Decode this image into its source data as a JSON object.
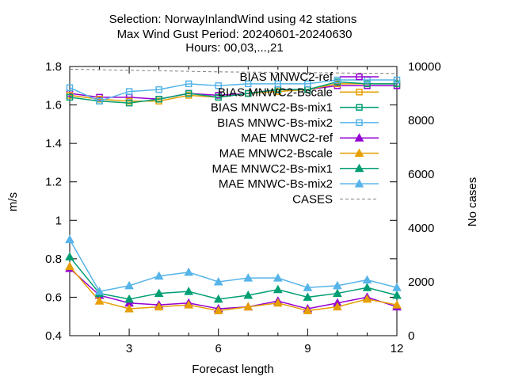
{
  "chart_data": {
    "type": "line",
    "title_lines": [
      "Selection: NorwayInlandWind using    42 stations",
      "Max Wind Gust   Period: 20240601-20240630",
      "Hours: 00,03,...,21"
    ],
    "xlabel": "Forecast length",
    "ylabel": "m/s",
    "y2label": "No cases",
    "x": [
      1,
      2,
      3,
      4,
      5,
      6,
      7,
      8,
      9,
      10,
      11,
      12
    ],
    "xlim": [
      1,
      12
    ],
    "ylim": [
      0.4,
      1.8
    ],
    "y2lim": [
      0,
      10000
    ],
    "xticks": [
      3,
      6,
      9,
      12
    ],
    "yticks": [
      0.4,
      0.6,
      0.8,
      1,
      1.2,
      1.4,
      1.6,
      1.8
    ],
    "y2ticks": [
      0,
      2000,
      4000,
      6000,
      8000,
      10000
    ],
    "grid": false,
    "legend_position": "top-right",
    "series": [
      {
        "name": "BIAS MNWC2-ref",
        "color": "#9400d3",
        "marker": "square-open",
        "values": [
          1.66,
          1.64,
          1.64,
          1.63,
          1.66,
          1.65,
          1.66,
          1.68,
          1.68,
          1.7,
          1.7,
          1.7
        ]
      },
      {
        "name": "BIAS MNWC2-Bscale",
        "color": "#e69f00",
        "marker": "square-open",
        "values": [
          1.65,
          1.63,
          1.62,
          1.62,
          1.65,
          1.64,
          1.66,
          1.67,
          1.68,
          1.71,
          1.71,
          1.71
        ]
      },
      {
        "name": "BIAS MNWC2-Bs-mix1",
        "color": "#009e73",
        "marker": "square-open",
        "values": [
          1.64,
          1.62,
          1.61,
          1.63,
          1.66,
          1.64,
          1.66,
          1.68,
          1.68,
          1.72,
          1.71,
          1.71
        ]
      },
      {
        "name": "BIAS MNWC-Bs-mix2",
        "color": "#56b4e9",
        "marker": "square-open",
        "values": [
          1.69,
          1.62,
          1.67,
          1.68,
          1.71,
          1.7,
          1.71,
          1.71,
          1.71,
          1.73,
          1.73,
          1.73
        ]
      },
      {
        "name": "MAE MNWC2-ref",
        "color": "#9400d3",
        "marker": "triangle",
        "values": [
          0.75,
          0.61,
          0.57,
          0.56,
          0.57,
          0.54,
          0.55,
          0.58,
          0.54,
          0.57,
          0.6,
          0.55
        ]
      },
      {
        "name": "MAE MNWC2-Bscale",
        "color": "#e69f00",
        "marker": "triangle",
        "values": [
          0.76,
          0.58,
          0.54,
          0.55,
          0.56,
          0.53,
          0.55,
          0.57,
          0.53,
          0.55,
          0.59,
          0.56
        ]
      },
      {
        "name": "MAE MNWC2-Bs-mix1",
        "color": "#009e73",
        "marker": "triangle",
        "values": [
          0.81,
          0.62,
          0.59,
          0.62,
          0.63,
          0.59,
          0.61,
          0.64,
          0.6,
          0.62,
          0.65,
          0.61
        ]
      },
      {
        "name": "MAE MNWC-Bs-mix2",
        "color": "#56b4e9",
        "marker": "triangle",
        "values": [
          0.9,
          0.63,
          0.66,
          0.71,
          0.73,
          0.68,
          0.7,
          0.7,
          0.65,
          0.66,
          0.69,
          0.65
        ]
      },
      {
        "name": "CASES",
        "color": "#808080",
        "marker": "none",
        "dashed": true,
        "axis": "y2",
        "values": [
          9900,
          9880,
          9860,
          9840,
          9820,
          9800,
          9790,
          9780,
          9770,
          9760,
          9750,
          9740
        ]
      }
    ]
  }
}
